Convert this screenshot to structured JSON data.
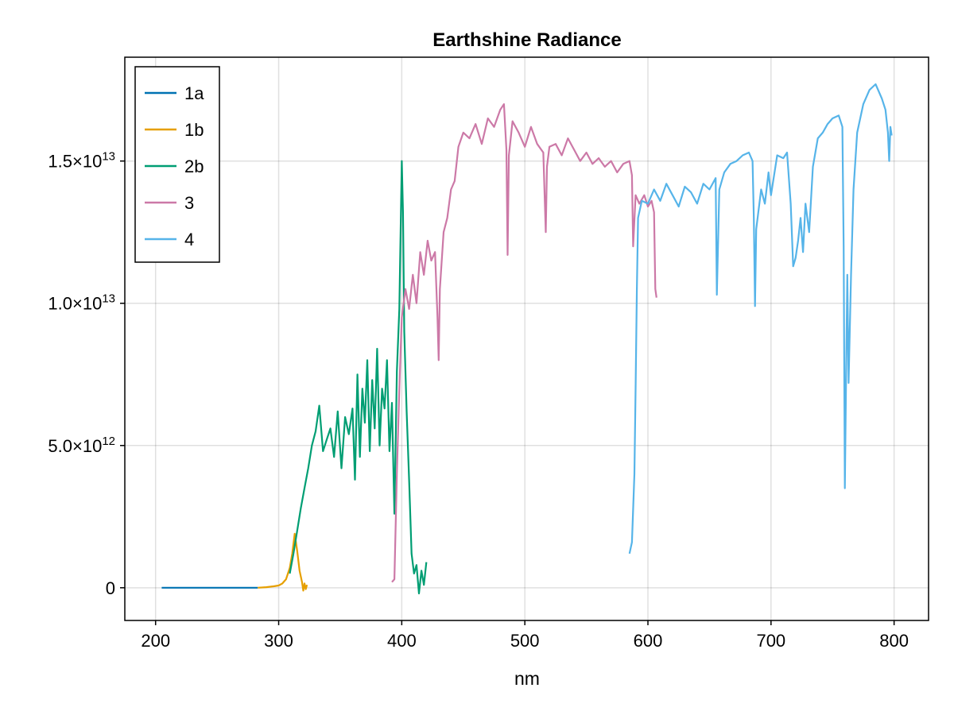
{
  "chart_data": {
    "type": "line",
    "title": "Earthshine Radiance",
    "xlabel": "nm",
    "ylabel": "",
    "xlim": [
      175,
      828
    ],
    "ylim": [
      -1150000000000.0,
      18650000000000.0
    ],
    "grid": true,
    "legend": "top-left",
    "x_ticks": [
      {
        "value": 200,
        "label": "200"
      },
      {
        "value": 300,
        "label": "300"
      },
      {
        "value": 400,
        "label": "400"
      },
      {
        "value": 500,
        "label": "500"
      },
      {
        "value": 600,
        "label": "600"
      },
      {
        "value": 700,
        "label": "700"
      },
      {
        "value": 800,
        "label": "800"
      }
    ],
    "y_ticks": [
      {
        "value": 0,
        "mantissa": "0",
        "exponent": ""
      },
      {
        "value": 5000000000000.0,
        "mantissa": "5.0×10",
        "exponent": "12"
      },
      {
        "value": 10000000000000.0,
        "mantissa": "1.0×10",
        "exponent": "13"
      },
      {
        "value": 15000000000000.0,
        "mantissa": "1.5×10",
        "exponent": "13"
      }
    ],
    "series": [
      {
        "name": "1a",
        "color": "#0072b2",
        "points": [
          [
            205,
            0
          ],
          [
            220,
            0
          ],
          [
            240,
            0
          ],
          [
            260,
            0
          ],
          [
            283,
            0
          ]
        ]
      },
      {
        "name": "1b",
        "color": "#e69f00",
        "points": [
          [
            283,
            0
          ],
          [
            290,
            20000000000.0
          ],
          [
            296,
            50000000000.0
          ],
          [
            300,
            80000000000.0
          ],
          [
            303,
            150000000000.0
          ],
          [
            306,
            300000000000.0
          ],
          [
            309,
            700000000000.0
          ],
          [
            311,
            1200000000000.0
          ],
          [
            313,
            1900000000000.0
          ],
          [
            315,
            1300000000000.0
          ],
          [
            317,
            600000000000.0
          ],
          [
            319,
            200000000000.0
          ],
          [
            320,
            -100000000000.0
          ],
          [
            321,
            150000000000.0
          ],
          [
            322,
            -50000000000.0
          ],
          [
            323,
            100000000000.0
          ]
        ]
      },
      {
        "name": "2b",
        "color": "#009e73",
        "points": [
          [
            309,
            500000000000.0
          ],
          [
            312,
            1200000000000.0
          ],
          [
            315,
            2000000000000.0
          ],
          [
            318,
            2800000000000.0
          ],
          [
            321,
            3500000000000.0
          ],
          [
            324,
            4200000000000.0
          ],
          [
            327,
            5000000000000.0
          ],
          [
            330,
            5500000000000.0
          ],
          [
            333,
            6400000000000.0
          ],
          [
            336,
            4800000000000.0
          ],
          [
            339,
            5200000000000.0
          ],
          [
            342,
            5600000000000.0
          ],
          [
            345,
            4600000000000.0
          ],
          [
            348,
            6200000000000.0
          ],
          [
            351,
            4200000000000.0
          ],
          [
            354,
            6000000000000.0
          ],
          [
            357,
            5400000000000.0
          ],
          [
            360,
            6300000000000.0
          ],
          [
            362,
            3800000000000.0
          ],
          [
            364,
            7500000000000.0
          ],
          [
            366,
            4600000000000.0
          ],
          [
            368,
            7000000000000.0
          ],
          [
            370,
            5800000000000.0
          ],
          [
            372,
            8000000000000.0
          ],
          [
            374,
            4800000000000.0
          ],
          [
            376,
            7300000000000.0
          ],
          [
            378,
            5600000000000.0
          ],
          [
            380,
            8400000000000.0
          ],
          [
            382,
            5000000000000.0
          ],
          [
            384,
            7000000000000.0
          ],
          [
            386,
            6300000000000.0
          ],
          [
            388,
            8000000000000.0
          ],
          [
            390,
            4800000000000.0
          ],
          [
            392,
            6500000000000.0
          ],
          [
            394,
            2600000000000.0
          ],
          [
            396,
            7600000000000.0
          ],
          [
            398,
            9800000000000.0
          ],
          [
            400,
            15000000000000.0
          ],
          [
            401,
            13200000000000.0
          ],
          [
            402,
            9000000000000.0
          ],
          [
            404,
            6200000000000.0
          ],
          [
            406,
            3800000000000.0
          ],
          [
            408,
            1200000000000.0
          ],
          [
            410,
            500000000000.0
          ],
          [
            412,
            800000000000.0
          ],
          [
            414,
            -200000000000.0
          ],
          [
            416,
            600000000000.0
          ],
          [
            418,
            100000000000.0
          ],
          [
            420,
            900000000000.0
          ]
        ]
      },
      {
        "name": "3",
        "color": "#cc79a7",
        "points": [
          [
            392,
            200000000000.0
          ],
          [
            394,
            300000000000.0
          ],
          [
            396,
            4000000000000.0
          ],
          [
            398,
            7000000000000.0
          ],
          [
            400,
            9500000000000.0
          ],
          [
            403,
            10500000000000.0
          ],
          [
            406,
            9800000000000.0
          ],
          [
            409,
            11000000000000.0
          ],
          [
            412,
            10000000000000.0
          ],
          [
            415,
            11800000000000.0
          ],
          [
            418,
            11000000000000.0
          ],
          [
            421,
            12200000000000.0
          ],
          [
            424,
            11500000000000.0
          ],
          [
            427,
            11800000000000.0
          ],
          [
            429,
            9500000000000.0
          ],
          [
            430,
            8000000000000.0
          ],
          [
            431,
            10500000000000.0
          ],
          [
            434,
            12500000000000.0
          ],
          [
            437,
            13000000000000.0
          ],
          [
            440,
            14000000000000.0
          ],
          [
            443,
            14300000000000.0
          ],
          [
            446,
            15500000000000.0
          ],
          [
            450,
            16000000000000.0
          ],
          [
            455,
            15800000000000.0
          ],
          [
            460,
            16300000000000.0
          ],
          [
            465,
            15600000000000.0
          ],
          [
            470,
            16500000000000.0
          ],
          [
            475,
            16200000000000.0
          ],
          [
            480,
            16800000000000.0
          ],
          [
            483,
            17000000000000.0
          ],
          [
            485,
            15400000000000.0
          ],
          [
            486,
            11700000000000.0
          ],
          [
            487,
            15200000000000.0
          ],
          [
            490,
            16400000000000.0
          ],
          [
            495,
            16000000000000.0
          ],
          [
            500,
            15500000000000.0
          ],
          [
            505,
            16200000000000.0
          ],
          [
            510,
            15600000000000.0
          ],
          [
            515,
            15300000000000.0
          ],
          [
            517,
            12500000000000.0
          ],
          [
            518,
            14800000000000.0
          ],
          [
            520,
            15500000000000.0
          ],
          [
            525,
            15600000000000.0
          ],
          [
            530,
            15200000000000.0
          ],
          [
            535,
            15800000000000.0
          ],
          [
            540,
            15400000000000.0
          ],
          [
            545,
            15000000000000.0
          ],
          [
            550,
            15300000000000.0
          ],
          [
            555,
            14900000000000.0
          ],
          [
            560,
            15100000000000.0
          ],
          [
            565,
            14800000000000.0
          ],
          [
            570,
            15000000000000.0
          ],
          [
            575,
            14600000000000.0
          ],
          [
            580,
            14900000000000.0
          ],
          [
            585,
            15000000000000.0
          ],
          [
            587,
            14500000000000.0
          ],
          [
            588,
            12000000000000.0
          ],
          [
            590,
            13800000000000.0
          ],
          [
            593,
            13500000000000.0
          ],
          [
            597,
            13800000000000.0
          ],
          [
            600,
            13400000000000.0
          ],
          [
            603,
            13600000000000.0
          ],
          [
            605,
            13200000000000.0
          ],
          [
            606,
            10500000000000.0
          ],
          [
            607,
            10200000000000.0
          ]
        ]
      },
      {
        "name": "4",
        "color": "#56b4e9",
        "points": [
          [
            585,
            1200000000000.0
          ],
          [
            587,
            1600000000000.0
          ],
          [
            589,
            4000000000000.0
          ],
          [
            590,
            7000000000000.0
          ],
          [
            591,
            10500000000000.0
          ],
          [
            592,
            13000000000000.0
          ],
          [
            595,
            13600000000000.0
          ],
          [
            600,
            13500000000000.0
          ],
          [
            605,
            14000000000000.0
          ],
          [
            610,
            13600000000000.0
          ],
          [
            615,
            14200000000000.0
          ],
          [
            620,
            13800000000000.0
          ],
          [
            625,
            13400000000000.0
          ],
          [
            630,
            14100000000000.0
          ],
          [
            635,
            13900000000000.0
          ],
          [
            640,
            13500000000000.0
          ],
          [
            645,
            14200000000000.0
          ],
          [
            650,
            14000000000000.0
          ],
          [
            655,
            14400000000000.0
          ],
          [
            656,
            10300000000000.0
          ],
          [
            658,
            14000000000000.0
          ],
          [
            662,
            14600000000000.0
          ],
          [
            667,
            14900000000000.0
          ],
          [
            672,
            15000000000000.0
          ],
          [
            677,
            15200000000000.0
          ],
          [
            682,
            15300000000000.0
          ],
          [
            685,
            15000000000000.0
          ],
          [
            686,
            13000000000000.0
          ],
          [
            687,
            9900000000000.0
          ],
          [
            688,
            12600000000000.0
          ],
          [
            692,
            14000000000000.0
          ],
          [
            695,
            13500000000000.0
          ],
          [
            698,
            14600000000000.0
          ],
          [
            700,
            13800000000000.0
          ],
          [
            705,
            15200000000000.0
          ],
          [
            710,
            15100000000000.0
          ],
          [
            713,
            15300000000000.0
          ],
          [
            716,
            13500000000000.0
          ],
          [
            718,
            11300000000000.0
          ],
          [
            720,
            11600000000000.0
          ],
          [
            722,
            12200000000000.0
          ],
          [
            724,
            13000000000000.0
          ],
          [
            726,
            11800000000000.0
          ],
          [
            728,
            13500000000000.0
          ],
          [
            731,
            12500000000000.0
          ],
          [
            734,
            14800000000000.0
          ],
          [
            738,
            15800000000000.0
          ],
          [
            742,
            16000000000000.0
          ],
          [
            746,
            16300000000000.0
          ],
          [
            750,
            16500000000000.0
          ],
          [
            755,
            16600000000000.0
          ],
          [
            758,
            16200000000000.0
          ],
          [
            759,
            12000000000000.0
          ],
          [
            760,
            3500000000000.0
          ],
          [
            761,
            7500000000000.0
          ],
          [
            762,
            11000000000000.0
          ],
          [
            763,
            7200000000000.0
          ],
          [
            765,
            11000000000000.0
          ],
          [
            767,
            14000000000000.0
          ],
          [
            770,
            16000000000000.0
          ],
          [
            775,
            17000000000000.0
          ],
          [
            780,
            17500000000000.0
          ],
          [
            785,
            17700000000000.0
          ],
          [
            790,
            17200000000000.0
          ],
          [
            793,
            16800000000000.0
          ],
          [
            795,
            16000000000000.0
          ],
          [
            796,
            15000000000000.0
          ],
          [
            797,
            16200000000000.0
          ],
          [
            798,
            15900000000000.0
          ]
        ]
      }
    ]
  }
}
